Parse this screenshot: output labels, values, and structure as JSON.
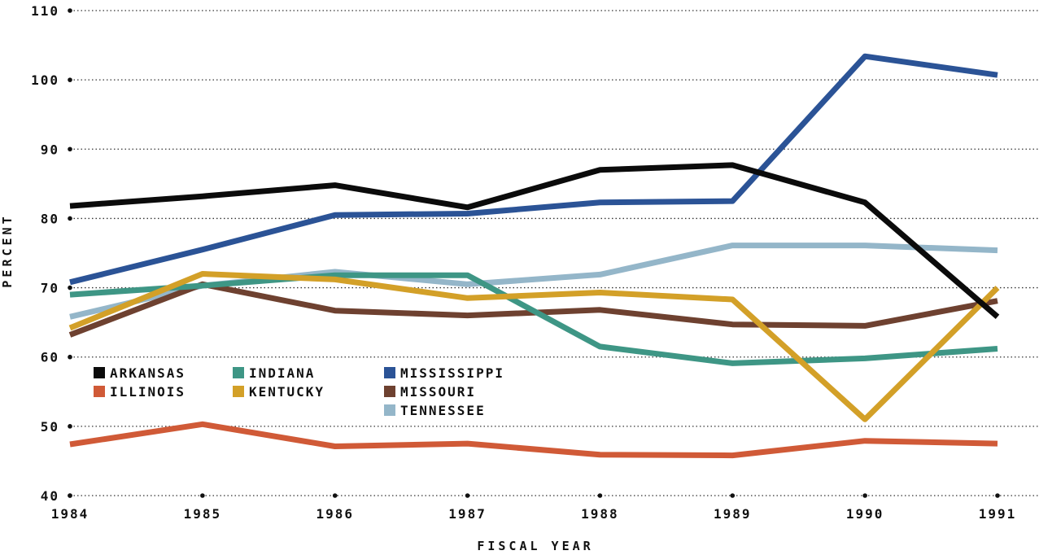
{
  "chart_data": {
    "type": "line",
    "title": "",
    "xlabel": "FISCAL YEAR",
    "ylabel": "PERCENT",
    "x": [
      "1984",
      "1985",
      "1986",
      "1987",
      "1988",
      "1989",
      "1990",
      "1991"
    ],
    "ylim": [
      40,
      110
    ],
    "yticks": [
      40,
      50,
      60,
      70,
      80,
      90,
      100,
      110
    ],
    "grid": "horizontal-dotted",
    "legend_placement": "lower-left",
    "series": [
      {
        "name": "ARKANSAS",
        "color": "#0b0b0b",
        "values": [
          81.8,
          83.2,
          84.8,
          81.6,
          87.0,
          87.7,
          82.3,
          65.8
        ]
      },
      {
        "name": "ILLINOIS",
        "color": "#d05a37",
        "values": [
          47.4,
          50.3,
          47.1,
          47.5,
          45.9,
          45.8,
          47.9,
          47.5
        ]
      },
      {
        "name": "INDIANA",
        "color": "#3e9685",
        "values": [
          69.0,
          70.3,
          71.8,
          71.8,
          61.5,
          59.1,
          59.8,
          61.2
        ]
      },
      {
        "name": "KENTUCKY",
        "color": "#d3a028",
        "values": [
          64.2,
          72.0,
          71.2,
          68.5,
          69.3,
          68.3,
          51.0,
          70.0
        ]
      },
      {
        "name": "MISSISSIPPI",
        "color": "#2b5396",
        "values": [
          70.8,
          75.5,
          80.5,
          80.7,
          82.3,
          82.5,
          103.4,
          100.7
        ]
      },
      {
        "name": "MISSOURI",
        "color": "#6e4130",
        "values": [
          63.2,
          70.5,
          66.7,
          66.0,
          66.8,
          64.7,
          64.5,
          68.1
        ]
      },
      {
        "name": "TENNESSEE",
        "color": "#94b6c9",
        "values": [
          65.8,
          70.3,
          72.3,
          70.5,
          71.9,
          76.1,
          76.1,
          75.4
        ]
      }
    ]
  }
}
